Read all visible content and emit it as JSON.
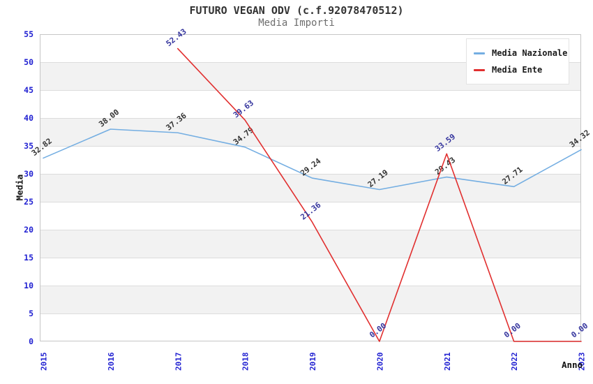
{
  "header": {
    "title": "FUTURO VEGAN ODV (c.f.92078470512)",
    "subtitle": "Media Importi"
  },
  "chart_data": {
    "type": "line",
    "title": "FUTURO VEGAN ODV (c.f.92078470512)",
    "subtitle": "Media Importi",
    "xlabel": "Anno",
    "ylabel": "Media",
    "categories": [
      2015,
      2016,
      2017,
      2018,
      2019,
      2020,
      2021,
      2022,
      2023
    ],
    "ylim": [
      0,
      55
    ],
    "ytick_step": 5,
    "grid": true,
    "banded_background": true,
    "legend_position": "top-right",
    "series": [
      {
        "name": "Media Nazionale",
        "color": "#74aee2",
        "label_color": "#333333",
        "values": [
          32.82,
          38.0,
          37.36,
          34.79,
          29.24,
          27.19,
          29.43,
          27.71,
          34.32
        ]
      },
      {
        "name": "Media Ente",
        "color": "#e12f2f",
        "label_color": "#36369e",
        "values": [
          null,
          null,
          52.43,
          39.63,
          21.36,
          0.0,
          33.59,
          0.0,
          0.0
        ]
      }
    ],
    "colors": {
      "tick_label": "#1f1fd1",
      "band": "#f2f2f2",
      "gridline": "#dcdcdc",
      "plot_border": "#c6c6c6",
      "axis_title": "#111111",
      "title": "#333333",
      "subtitle": "#6e6e6e"
    }
  }
}
